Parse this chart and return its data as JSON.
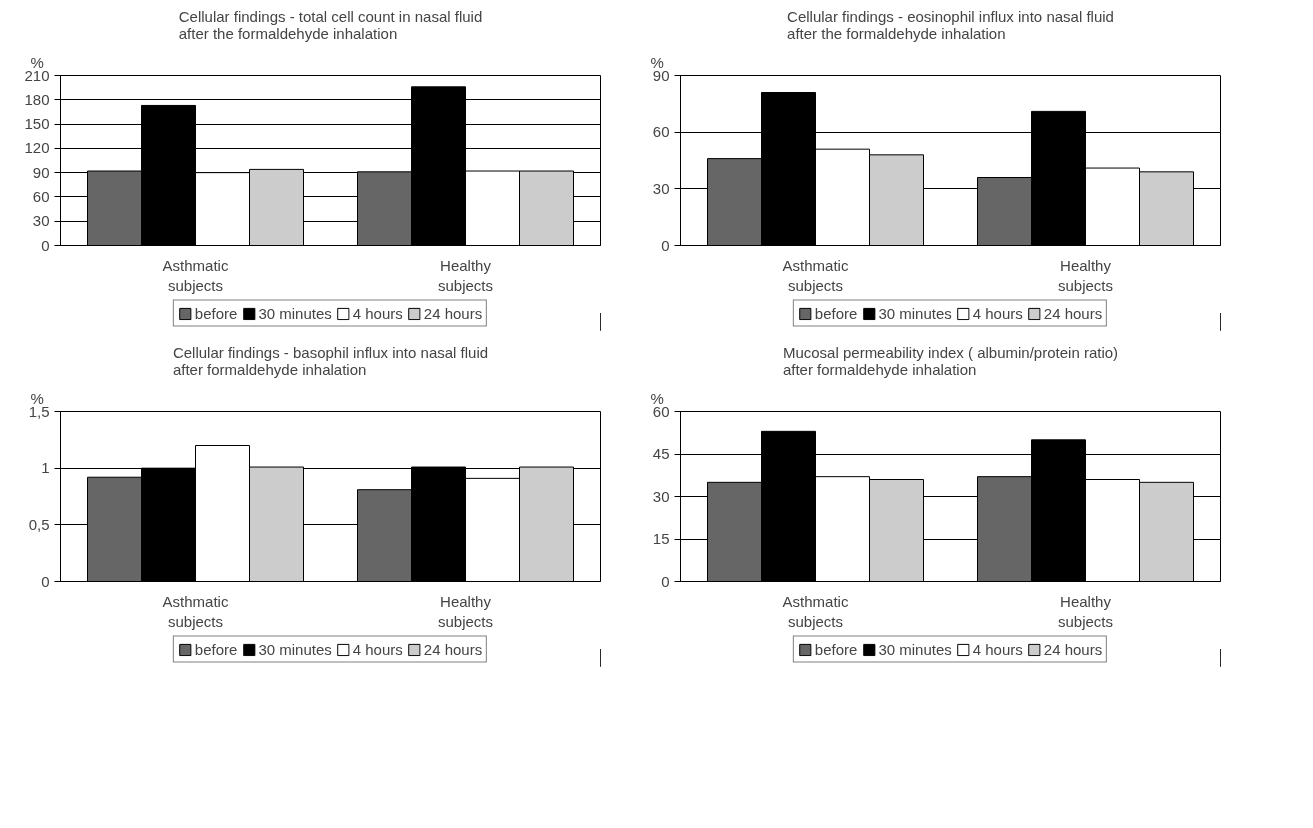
{
  "chart_data": [
    {
      "type": "bar",
      "title": "Cellular findings - total cell count in nasal fluid after the formaldehyde inhalation",
      "ylabel": "%",
      "categories": [
        "Asthmatic subjects",
        "Healthy subjects"
      ],
      "ylim": [
        0,
        210
      ],
      "yticks": [
        0,
        30,
        60,
        90,
        120,
        150,
        180,
        210
      ],
      "grid": "y",
      "legend": "bottom",
      "series": [
        {
          "name": "before",
          "color": "#666666",
          "values": [
            92,
            91
          ]
        },
        {
          "name": "30 minutes",
          "color": "#000000",
          "values": [
            173,
            196
          ]
        },
        {
          "name": "4 hours",
          "color": "#ffffff",
          "values": [
            90,
            92
          ]
        },
        {
          "name": "24 hours",
          "color": "#cccccc",
          "values": [
            94,
            92
          ]
        }
      ]
    },
    {
      "type": "bar",
      "title": "Cellular findings - eosinophil influx into nasal fluid after the formaldehyde inhalation",
      "ylabel": "%",
      "categories": [
        "Asthmatic subjects",
        "Healthy subjects"
      ],
      "ylim": [
        0,
        90
      ],
      "yticks": [
        0,
        30,
        60,
        90
      ],
      "grid": "y",
      "legend": "bottom",
      "series": [
        {
          "name": "before",
          "color": "#666666",
          "values": [
            46,
            36
          ]
        },
        {
          "name": "30 minutes",
          "color": "#000000",
          "values": [
            81,
            71
          ]
        },
        {
          "name": "4 hours",
          "color": "#ffffff",
          "values": [
            51,
            41
          ]
        },
        {
          "name": "24 hours",
          "color": "#cccccc",
          "values": [
            48,
            39
          ]
        }
      ]
    },
    {
      "type": "bar",
      "title": "Cellular findings - basophil influx into nasal fluid after formaldehyde inhalation",
      "ylabel": "%",
      "categories": [
        "Asthmatic subjects",
        "Healthy subjects"
      ],
      "ylim": [
        0,
        1.5
      ],
      "yticks": [
        0,
        {
          "value": 0.5,
          "label": "0,5"
        },
        1,
        {
          "value": 1.5,
          "label": "1,5"
        }
      ],
      "grid": "y",
      "legend": "bottom",
      "series": [
        {
          "name": "before",
          "color": "#666666",
          "values": [
            0.92,
            0.81
          ]
        },
        {
          "name": "30 minutes",
          "color": "#000000",
          "values": [
            1.0,
            1.01
          ]
        },
        {
          "name": "4 hours",
          "color": "#ffffff",
          "values": [
            1.2,
            0.91
          ]
        },
        {
          "name": "24 hours",
          "color": "#cccccc",
          "values": [
            1.01,
            1.01
          ]
        }
      ]
    },
    {
      "type": "bar",
      "title": "Mucosal permeability index ( albumin/protein ratio) after formaldehyde inhalation",
      "ylabel": "%",
      "categories": [
        "Asthmatic subjects",
        "Healthy subjects"
      ],
      "ylim": [
        0,
        60
      ],
      "yticks": [
        0,
        15,
        30,
        45,
        60
      ],
      "grid": "y",
      "legend": "bottom",
      "series": [
        {
          "name": "before",
          "color": "#666666",
          "values": [
            35,
            37
          ]
        },
        {
          "name": "30 minutes",
          "color": "#000000",
          "values": [
            53,
            50
          ]
        },
        {
          "name": "4 hours",
          "color": "#ffffff",
          "values": [
            37,
            36
          ]
        },
        {
          "name": "24 hours",
          "color": "#cccccc",
          "values": [
            36,
            35
          ]
        }
      ]
    }
  ]
}
